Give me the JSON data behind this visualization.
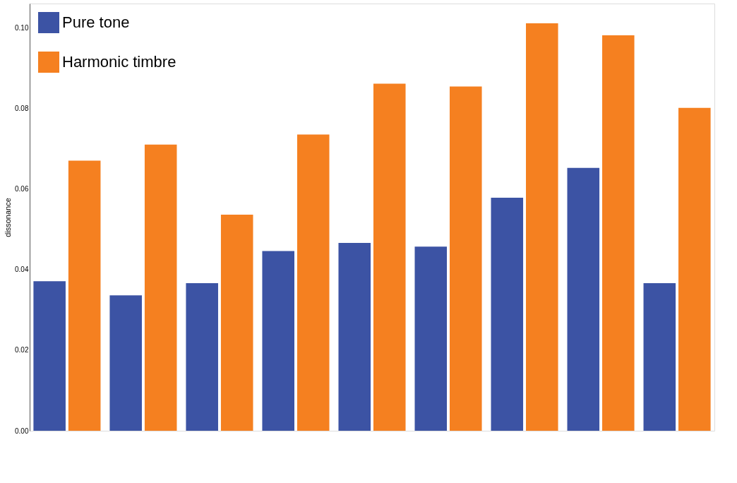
{
  "chart_data": {
    "type": "bar",
    "ylabel": "dissonance",
    "categories": [
      null,
      null,
      null,
      null,
      null,
      null,
      null,
      null,
      null
    ],
    "series": [
      {
        "name": "Pure tone",
        "color": "#3c53a4",
        "values": [
          0.0371,
          0.0336,
          0.0366,
          0.0446,
          0.0466,
          0.0457,
          0.0578,
          0.0652,
          0.0366
        ]
      },
      {
        "name": "Harmonic timbre",
        "color": "#f58020",
        "values": [
          0.067,
          0.071,
          0.0536,
          0.0735,
          0.0861,
          0.0854,
          0.1011,
          0.0981,
          0.0801
        ]
      }
    ],
    "ylim": [
      0,
      0.106
    ],
    "yticks": [
      {
        "value": 0,
        "label": "0.00"
      },
      {
        "value": 0.02,
        "label": "0.02"
      },
      {
        "value": 0.04,
        "label": "0.04"
      },
      {
        "value": 0.06,
        "label": "0.06"
      },
      {
        "value": 0.08,
        "label": "0.08"
      },
      {
        "value": 0.1,
        "label": "0.10"
      }
    ],
    "grid": false,
    "legend": "top left",
    "tick_labels": "y"
  }
}
